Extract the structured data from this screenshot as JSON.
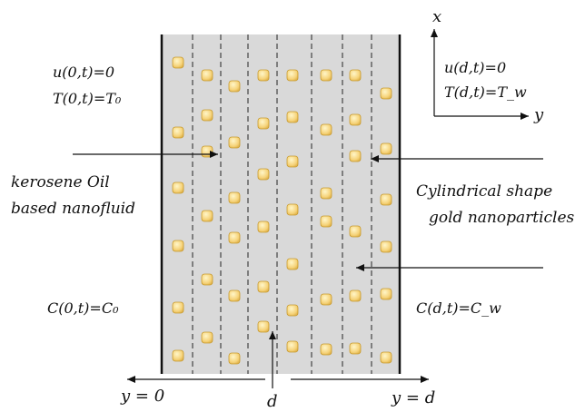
{
  "left_conditions": {
    "velocity": "u(0,t)=0",
    "temperature": "T(0,t)=T₀",
    "concentration": "C(0,t)=C₀"
  },
  "right_conditions": {
    "velocity": "u(d,t)=0",
    "temperature": "T(d,t)=T_w",
    "concentration": "C(d,t)=C_w"
  },
  "fluid_label": {
    "line1": "kerosene Oil",
    "line2": "based nanofluid"
  },
  "particle_label": {
    "line1": "Cylindrical shape",
    "line2": "gold nanoparticles"
  },
  "axes": {
    "x_label": "x",
    "y_label": "y",
    "bottom_left": "y = 0",
    "bottom_mid": "d",
    "bottom_right": "y = d"
  },
  "colors": {
    "channel": "#d9d9d9",
    "particle": "#f6d37a",
    "wall": "#111111"
  }
}
